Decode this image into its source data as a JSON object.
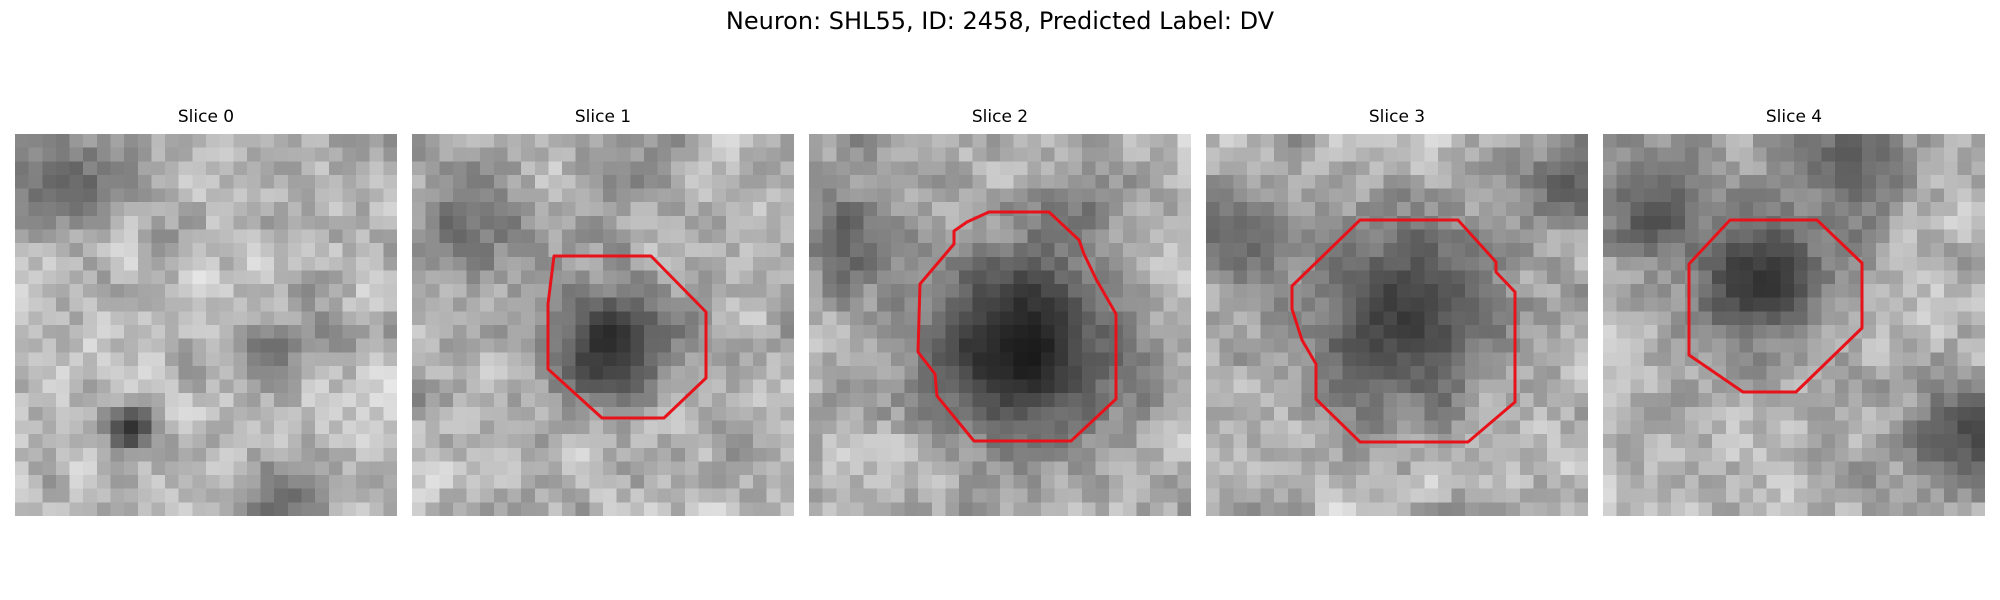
{
  "figure": {
    "title": "Neuron: SHL55, ID: 2458, Predicted Label: DV"
  },
  "slices": [
    {
      "title": "Slice 0",
      "roi_shown": false
    },
    {
      "title": "Slice 1",
      "roi_shown": true
    },
    {
      "title": "Slice 2",
      "roi_shown": true
    },
    {
      "title": "Slice 3",
      "roi_shown": true
    },
    {
      "title": "Slice 4",
      "roi_shown": true
    }
  ],
  "colors": {
    "roi_outline": "#e8121a",
    "colormap": "gray"
  }
}
